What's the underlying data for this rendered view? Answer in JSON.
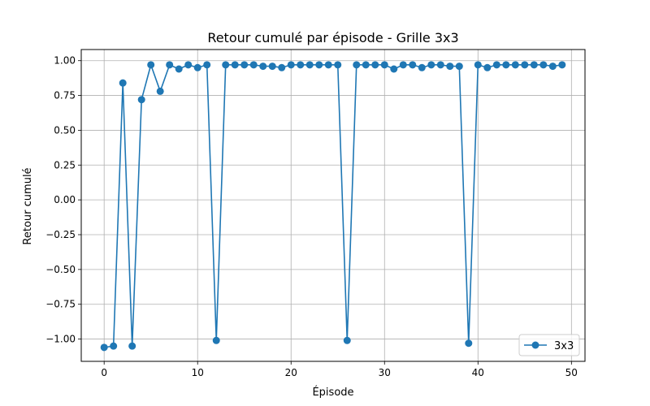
{
  "chart_data": {
    "type": "line",
    "title": "Retour cumulé par épisode - Grille 3x3",
    "xlabel": "Épisode",
    "ylabel": "Retour cumulé",
    "xlim": [
      -2.45,
      51.45
    ],
    "ylim": [
      -1.16,
      1.08
    ],
    "xticks": [
      0,
      10,
      20,
      30,
      40,
      50
    ],
    "yticks": [
      -1.0,
      -0.75,
      -0.5,
      -0.25,
      0.0,
      0.25,
      0.5,
      0.75,
      1.0
    ],
    "xtick_labels": [
      "0",
      "10",
      "20",
      "30",
      "40",
      "50"
    ],
    "ytick_labels": [
      "−1.00",
      "−0.75",
      "−0.50",
      "−0.25",
      "0.00",
      "0.25",
      "0.50",
      "0.75",
      "1.00"
    ],
    "grid": true,
    "legend": "lower-right",
    "series": [
      {
        "name": "3x3",
        "color": "#1f77b4",
        "marker": "circle",
        "x": [
          0,
          1,
          2,
          3,
          4,
          5,
          6,
          7,
          8,
          9,
          10,
          11,
          12,
          13,
          14,
          15,
          16,
          17,
          18,
          19,
          20,
          21,
          22,
          23,
          24,
          25,
          26,
          27,
          28,
          29,
          30,
          31,
          32,
          33,
          34,
          35,
          36,
          37,
          38,
          39,
          40,
          41,
          42,
          43,
          44,
          45,
          46,
          47,
          48,
          49
        ],
        "y": [
          -1.06,
          -1.05,
          0.84,
          -1.05,
          0.72,
          0.97,
          0.78,
          0.97,
          0.94,
          0.97,
          0.95,
          0.97,
          -1.01,
          0.97,
          0.97,
          0.97,
          0.97,
          0.96,
          0.96,
          0.95,
          0.97,
          0.97,
          0.97,
          0.97,
          0.97,
          0.97,
          -1.01,
          0.97,
          0.97,
          0.97,
          0.97,
          0.94,
          0.97,
          0.97,
          0.95,
          0.97,
          0.97,
          0.96,
          0.96,
          -1.03,
          0.97,
          0.95,
          0.97,
          0.97,
          0.97,
          0.97,
          0.97,
          0.97,
          0.96,
          0.97
        ]
      }
    ]
  }
}
